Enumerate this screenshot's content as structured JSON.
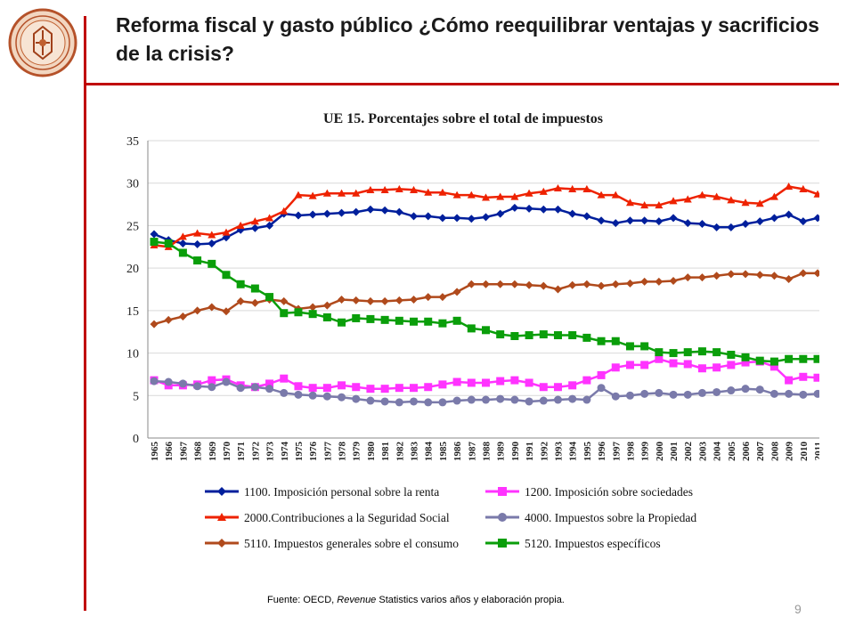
{
  "slide": {
    "title": "Reforma fiscal y gasto público ¿Cómo reequilibrar ventajas y sacrificios de la crisis?",
    "source_prefix": "Fuente: OECD, ",
    "source_italic": "Revenue",
    "source_suffix": " Statistics varios años y elaboración propia.",
    "page_number": "9",
    "accent_color": "#c00000"
  },
  "chart_data": {
    "type": "line",
    "title": "UE 15. Porcentajes sobre el total de impuestos",
    "xlabel": "",
    "ylabel": "",
    "ylim": [
      0,
      35
    ],
    "yticks": [
      0,
      5,
      10,
      15,
      20,
      25,
      30,
      35
    ],
    "grid": "horizontal",
    "legend_position": "bottom",
    "x": [
      "1965",
      "1966",
      "1967",
      "1968",
      "1969",
      "1970",
      "1971",
      "1972",
      "1973",
      "1974",
      "1975",
      "1976",
      "1977",
      "1978",
      "1979",
      "1980",
      "1981",
      "1982",
      "1983",
      "1984",
      "1985",
      "1986",
      "1987",
      "1988",
      "1989",
      "1990",
      "1991",
      "1992",
      "1993",
      "1994",
      "1995",
      "1996",
      "1997",
      "1998",
      "1999",
      "2000",
      "2001",
      "2002",
      "2003",
      "2004",
      "2005",
      "2006",
      "2007",
      "2008",
      "2009",
      "2010",
      "2011"
    ],
    "series": [
      {
        "name": "1100. Imposición personal sobre la renta",
        "color": "#001f9c",
        "marker": "diamond",
        "values": [
          24.0,
          23.3,
          22.9,
          22.8,
          22.9,
          23.6,
          24.5,
          24.7,
          25.0,
          26.4,
          26.2,
          26.3,
          26.4,
          26.5,
          26.6,
          26.9,
          26.8,
          26.6,
          26.1,
          26.1,
          25.9,
          25.9,
          25.8,
          26.0,
          26.4,
          27.1,
          27.0,
          26.9,
          26.9,
          26.4,
          26.1,
          25.6,
          25.3,
          25.6,
          25.6,
          25.5,
          25.9,
          25.3,
          25.2,
          24.8,
          24.8,
          25.2,
          25.5,
          25.9,
          26.3,
          25.5,
          25.9
        ]
      },
      {
        "name": "1200. Imposición sobre sociedades",
        "color": "#ff33ff",
        "marker": "square",
        "values": [
          6.8,
          6.2,
          6.2,
          6.3,
          6.8,
          6.9,
          6.2,
          6.0,
          6.4,
          7.0,
          6.1,
          5.9,
          5.9,
          6.2,
          6.0,
          5.8,
          5.8,
          5.9,
          5.9,
          6.0,
          6.3,
          6.6,
          6.5,
          6.5,
          6.7,
          6.8,
          6.5,
          6.0,
          6.0,
          6.2,
          6.8,
          7.4,
          8.3,
          8.6,
          8.6,
          9.3,
          8.8,
          8.7,
          8.2,
          8.3,
          8.6,
          8.9,
          9.0,
          8.4,
          6.8,
          7.2,
          7.1
        ]
      },
      {
        "name": "2000.Contribuciones a la Seguridad Social",
        "color": "#ee2200",
        "marker": "triangle",
        "values": [
          22.7,
          22.5,
          23.7,
          24.1,
          23.9,
          24.2,
          25.0,
          25.5,
          25.9,
          26.7,
          28.6,
          28.5,
          28.8,
          28.8,
          28.8,
          29.2,
          29.2,
          29.3,
          29.2,
          28.9,
          28.9,
          28.6,
          28.6,
          28.3,
          28.4,
          28.4,
          28.8,
          29.0,
          29.4,
          29.3,
          29.3,
          28.6,
          28.6,
          27.7,
          27.4,
          27.4,
          27.9,
          28.1,
          28.6,
          28.4,
          28.0,
          27.7,
          27.6,
          28.4,
          29.6,
          29.3,
          28.7
        ]
      },
      {
        "name": "4000. Impuestos sobre la Propiedad",
        "color": "#7a7aaa",
        "marker": "circle",
        "values": [
          6.7,
          6.6,
          6.4,
          6.1,
          6.0,
          6.6,
          5.9,
          6.0,
          5.8,
          5.3,
          5.1,
          5.0,
          4.9,
          4.8,
          4.6,
          4.4,
          4.3,
          4.2,
          4.3,
          4.2,
          4.2,
          4.4,
          4.5,
          4.5,
          4.6,
          4.5,
          4.3,
          4.4,
          4.5,
          4.6,
          4.5,
          5.9,
          4.9,
          5.0,
          5.2,
          5.3,
          5.1,
          5.1,
          5.3,
          5.4,
          5.6,
          5.8,
          5.7,
          5.2,
          5.2,
          5.1,
          5.2
        ]
      },
      {
        "name": "5110. Impuestos generales sobre el consumo",
        "color": "#b04a1c",
        "marker": "diamond",
        "values": [
          13.4,
          13.9,
          14.3,
          15.0,
          15.4,
          14.9,
          16.1,
          15.9,
          16.3,
          16.1,
          15.2,
          15.4,
          15.6,
          16.3,
          16.2,
          16.1,
          16.1,
          16.2,
          16.3,
          16.6,
          16.6,
          17.2,
          18.1,
          18.1,
          18.1,
          18.1,
          18.0,
          17.9,
          17.5,
          18.0,
          18.1,
          17.9,
          18.1,
          18.2,
          18.4,
          18.4,
          18.5,
          18.9,
          18.9,
          19.1,
          19.3,
          19.3,
          19.2,
          19.1,
          18.7,
          19.4,
          19.4
        ]
      },
      {
        "name": "5120. Impuestos específicos",
        "color": "#0a9e0a",
        "marker": "square",
        "values": [
          23.1,
          22.9,
          21.8,
          20.9,
          20.5,
          19.2,
          18.1,
          17.6,
          16.6,
          14.7,
          14.8,
          14.6,
          14.2,
          13.6,
          14.1,
          14.0,
          13.9,
          13.8,
          13.7,
          13.7,
          13.5,
          13.8,
          12.9,
          12.7,
          12.2,
          12.0,
          12.1,
          12.2,
          12.1,
          12.1,
          11.8,
          11.4,
          11.4,
          10.8,
          10.8,
          10.1,
          10.0,
          10.1,
          10.2,
          10.1,
          9.8,
          9.5,
          9.1,
          9.0,
          9.3,
          9.3,
          9.3
        ]
      }
    ]
  }
}
